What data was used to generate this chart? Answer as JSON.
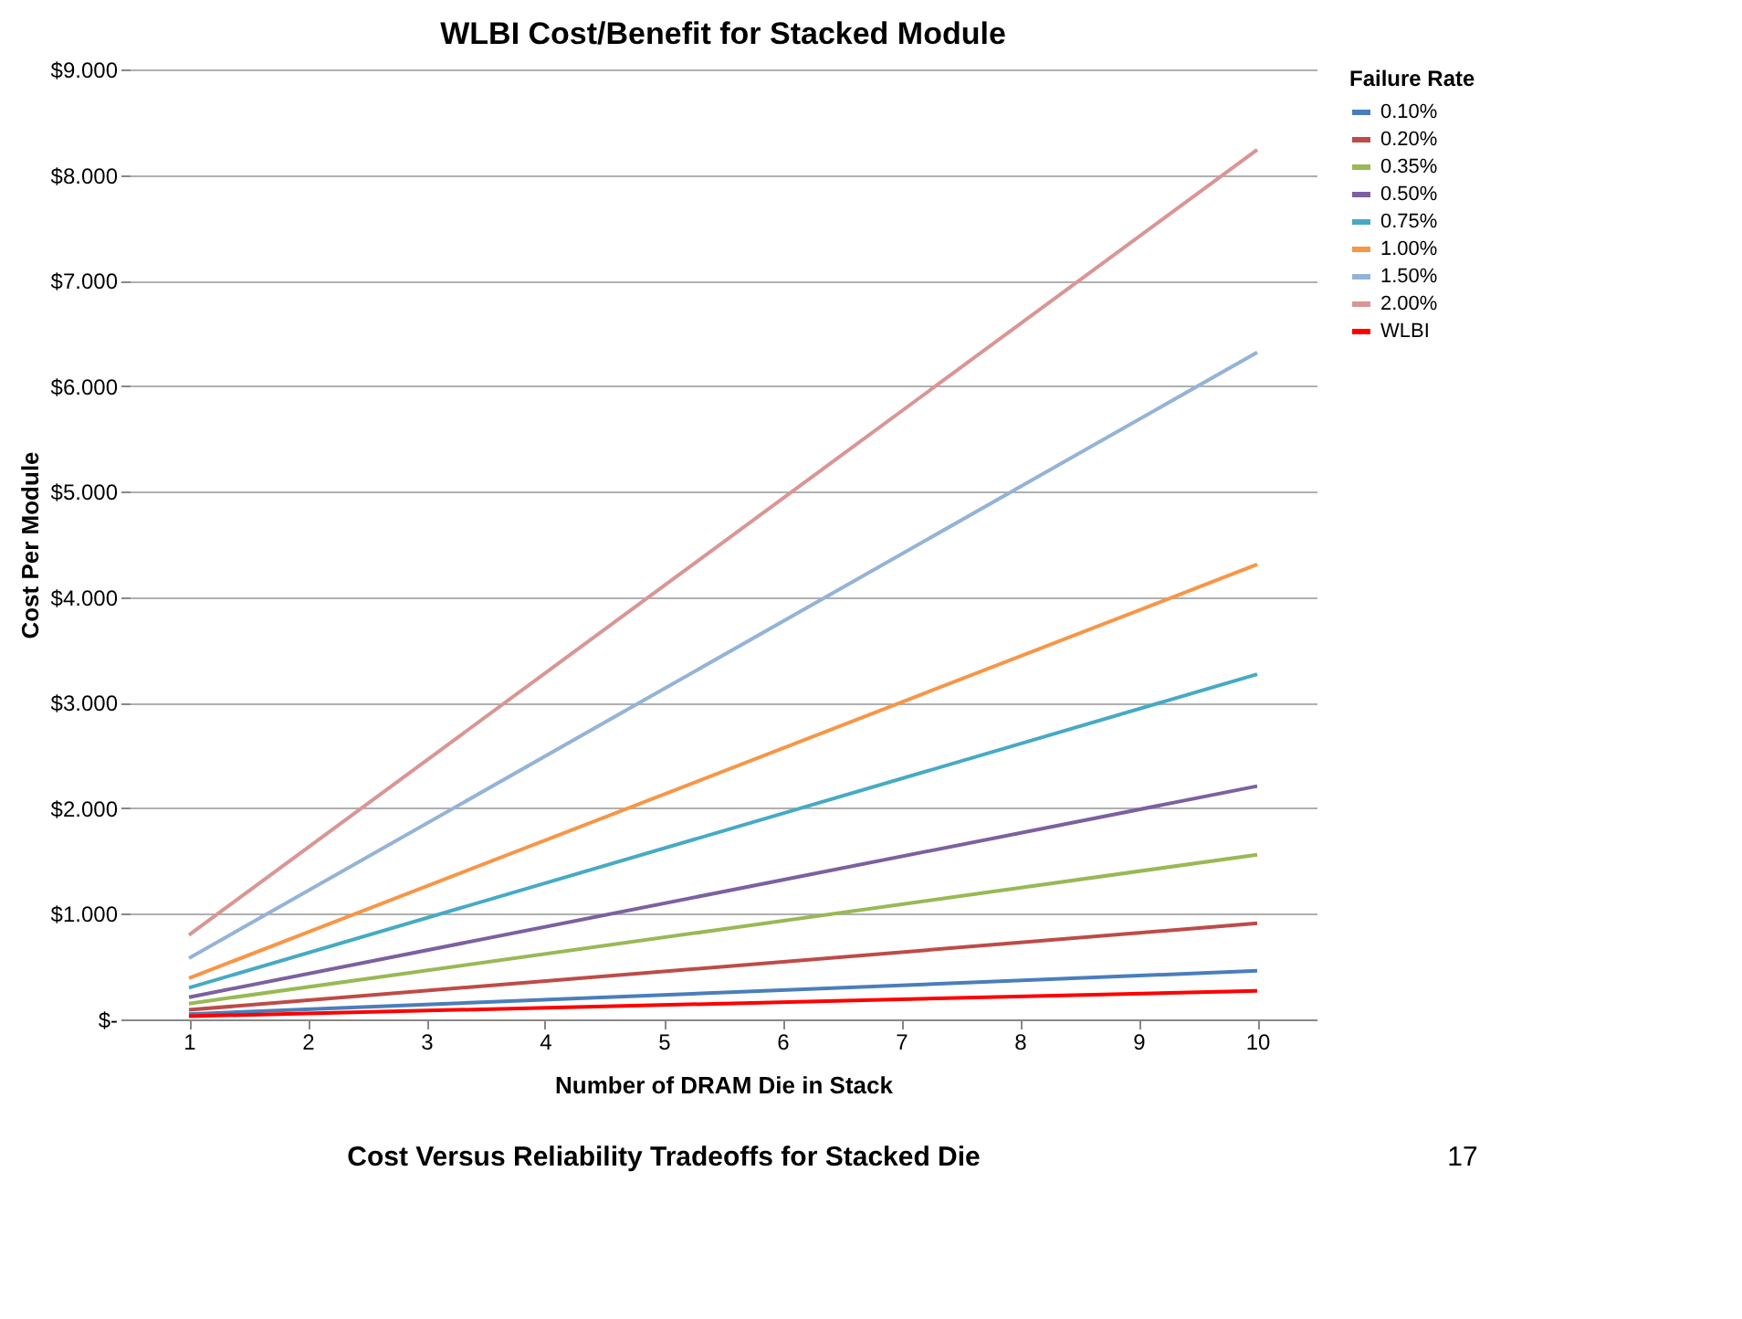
{
  "chart_data": {
    "type": "line",
    "title": "WLBI Cost/Benefit for Stacked Module",
    "xlabel": "Number of DRAM Die in Stack",
    "ylabel": "Cost Per Module",
    "legend_title": "Failure Rate",
    "x": [
      1,
      10
    ],
    "series": [
      {
        "name": "0.10%",
        "color": "#4a7ebb",
        "values": [
          0.05,
          0.46
        ]
      },
      {
        "name": "0.20%",
        "color": "#be4b48",
        "values": [
          0.09,
          0.91
        ]
      },
      {
        "name": "0.35%",
        "color": "#98b954",
        "values": [
          0.15,
          1.56
        ]
      },
      {
        "name": "0.50%",
        "color": "#7d60a0",
        "values": [
          0.21,
          2.21
        ]
      },
      {
        "name": "0.75%",
        "color": "#46aac5",
        "values": [
          0.3,
          3.27
        ]
      },
      {
        "name": "1.00%",
        "color": "#f79646",
        "values": [
          0.39,
          4.31
        ]
      },
      {
        "name": "1.50%",
        "color": "#95b3d7",
        "values": [
          0.58,
          6.32
        ]
      },
      {
        "name": "2.00%",
        "color": "#d99694",
        "values": [
          0.8,
          8.24
        ]
      },
      {
        "name": "WLBI",
        "color": "#ff0000",
        "values": [
          0.03,
          0.27
        ]
      }
    ],
    "xlim": [
      0.5,
      10.5
    ],
    "xticks": [
      1,
      2,
      3,
      4,
      5,
      6,
      7,
      8,
      9,
      10
    ],
    "ylim": [
      0,
      9
    ],
    "yticks": [
      {
        "value": 0,
        "label": "$-"
      },
      {
        "value": 1,
        "label": "$1.000"
      },
      {
        "value": 2,
        "label": "$2.000"
      },
      {
        "value": 3,
        "label": "$3.000"
      },
      {
        "value": 4,
        "label": "$4.000"
      },
      {
        "value": 5,
        "label": "$5.000"
      },
      {
        "value": 6,
        "label": "$6.000"
      },
      {
        "value": 7,
        "label": "$7.000"
      },
      {
        "value": 8,
        "label": "$8.000"
      },
      {
        "value": 9,
        "label": "$9.000"
      }
    ],
    "grid": "y",
    "legend": "right",
    "marker": "none",
    "line_style": "solid",
    "annotations": [
      "Cost Versus Reliability Tradeoffs for Stacked Die",
      "17"
    ]
  }
}
